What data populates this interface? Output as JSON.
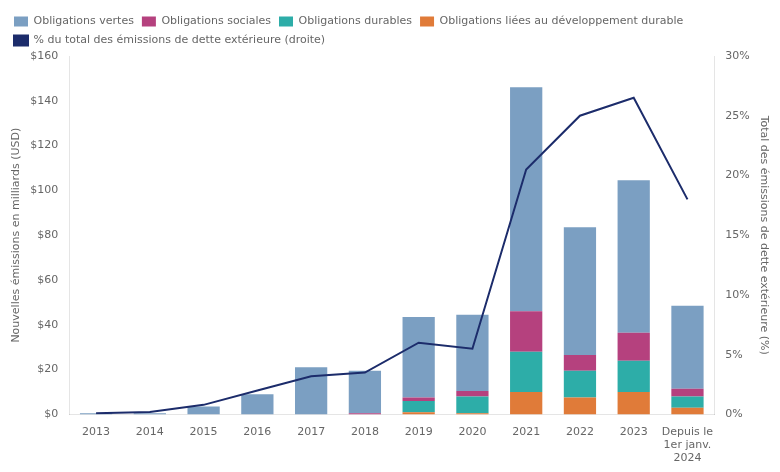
{
  "chart_data": {
    "type": "bar",
    "stacked": true,
    "grid": false,
    "legend": "upper left",
    "ylabel": "Nouvelles émissions en milliards (USD)",
    "y2label": "Total des émissions de dette extérieure (%)",
    "categories": [
      "2013",
      "2014",
      "2015",
      "2016",
      "2017",
      "2018",
      "2019",
      "2020",
      "2021",
      "2022",
      "2023",
      "Depuis le\n1er janv.\n2024"
    ],
    "series": [
      {
        "name": "Obligations liées au développement durable",
        "color": "#e07b39",
        "type": "bar",
        "values": [
          0.0,
          0.0,
          0.0,
          0.0,
          0.0,
          0.0,
          1.0,
          0.5,
          10.0,
          7.5,
          10.0,
          3.0
        ]
      },
      {
        "name": "Obligations durables",
        "color": "#2dada8",
        "type": "bar",
        "values": [
          0.0,
          0.0,
          0.0,
          0.0,
          0.0,
          0.0,
          5.0,
          7.5,
          18.0,
          12.0,
          14.0,
          5.0
        ]
      },
      {
        "name": "Obligations sociales",
        "color": "#b5417e",
        "type": "bar",
        "values": [
          0.0,
          0.0,
          0.0,
          0.0,
          0.0,
          0.5,
          1.5,
          2.5,
          18.0,
          7.0,
          12.5,
          3.5
        ]
      },
      {
        "name": "Obligations vertes",
        "color": "#7b9fc2",
        "type": "bar",
        "values": [
          0.5,
          0.5,
          3.5,
          9.0,
          21.0,
          19.0,
          36.0,
          34.0,
          100.0,
          57.0,
          68.0,
          37.0
        ]
      },
      {
        "name": "% du total des émissions de dette extérieure (droite)",
        "color": "#1c2c6b",
        "type": "line",
        "marker": "none",
        "axis": "y2",
        "values": [
          0.1,
          0.2,
          0.8,
          2.0,
          3.2,
          3.5,
          6.0,
          5.5,
          20.5,
          25.0,
          26.5,
          18.0
        ]
      }
    ],
    "ylim": [
      0,
      160
    ],
    "yticks": [
      {
        "value": 0,
        "label": "$0"
      },
      {
        "value": 20,
        "label": "$20"
      },
      {
        "value": 40,
        "label": "$40"
      },
      {
        "value": 60,
        "label": "$60"
      },
      {
        "value": 80,
        "label": "$80"
      },
      {
        "value": 100,
        "label": "$100"
      },
      {
        "value": 120,
        "label": "$120"
      },
      {
        "value": 140,
        "label": "$140"
      },
      {
        "value": 160,
        "label": "$160"
      }
    ],
    "y2lim": [
      0,
      30
    ],
    "y2ticks": [
      {
        "value": 0,
        "label": "0%"
      },
      {
        "value": 5,
        "label": "5%"
      },
      {
        "value": 10,
        "label": "10%"
      },
      {
        "value": 15,
        "label": "15%"
      },
      {
        "value": 20,
        "label": "20%"
      },
      {
        "value": 25,
        "label": "25%"
      },
      {
        "value": 30,
        "label": "30%"
      }
    ]
  }
}
